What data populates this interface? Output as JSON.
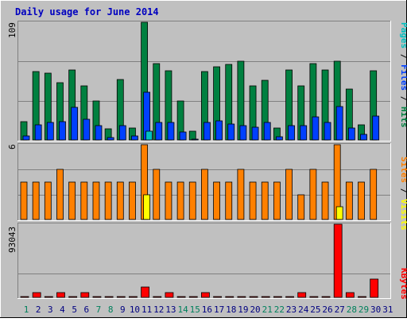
{
  "chart_data": [
    {
      "type": "bar",
      "title": "Daily usage for June 2014",
      "ymax_label": "109",
      "right_label": [
        {
          "text": "Pages",
          "color": "#00c0c0"
        },
        {
          "text": " / ",
          "color": "#000000"
        },
        {
          "text": "Files",
          "color": "#0040ff"
        },
        {
          "text": " / ",
          "color": "#000000"
        },
        {
          "text": "Hits",
          "color": "#008040"
        }
      ],
      "categories": [
        "1",
        "2",
        "3",
        "4",
        "5",
        "6",
        "7",
        "8",
        "9",
        "10",
        "11",
        "12",
        "13",
        "14",
        "15",
        "16",
        "17",
        "18",
        "19",
        "20",
        "21",
        "22",
        "23",
        "24",
        "25",
        "26",
        "27",
        "28",
        "29",
        "30",
        "31"
      ],
      "series": [
        {
          "name": "Hits",
          "color": "#008040",
          "values": [
            17,
            63,
            62,
            53,
            65,
            50,
            36,
            10,
            56,
            11,
            109,
            71,
            64,
            36,
            8,
            63,
            68,
            70,
            73,
            50,
            55,
            11,
            65,
            50,
            71,
            65,
            73,
            47,
            14,
            64,
            0
          ]
        },
        {
          "name": "Files",
          "color": "#0040ff",
          "values": [
            4,
            14,
            16,
            17,
            30,
            19,
            13,
            2,
            13,
            4,
            44,
            16,
            16,
            7,
            1,
            16,
            18,
            15,
            13,
            12,
            16,
            3,
            13,
            13,
            21,
            16,
            31,
            11,
            5,
            22,
            0
          ]
        },
        {
          "name": "Pages",
          "color": "#00c0c0",
          "values": [
            0,
            0,
            0,
            0,
            0,
            0,
            0,
            0,
            0,
            0,
            8,
            0,
            0,
            0,
            0,
            0,
            0,
            0,
            0,
            0,
            0,
            0,
            0,
            0,
            0,
            0,
            0,
            0,
            0,
            0,
            0
          ]
        }
      ],
      "ylim": [
        0,
        109
      ]
    },
    {
      "type": "bar",
      "ymax_label": "6",
      "right_label": [
        {
          "text": "Sites",
          "color": "#ff8000"
        },
        {
          "text": " / ",
          "color": "#000000"
        },
        {
          "text": "Visits",
          "color": "#ffff00"
        }
      ],
      "series": [
        {
          "name": "Sites",
          "color": "#ff8000",
          "values": [
            3,
            3,
            3,
            4,
            3,
            3,
            3,
            3,
            3,
            3,
            6,
            4,
            3,
            3,
            3,
            4,
            3,
            3,
            4,
            3,
            3,
            3,
            4,
            2,
            4,
            3,
            6,
            3,
            3,
            4,
            0
          ]
        },
        {
          "name": "Visits",
          "color": "#ffff00",
          "values": [
            0,
            0,
            0,
            0,
            0,
            0,
            0,
            0,
            0,
            0,
            2,
            0,
            0,
            0,
            0,
            0,
            0,
            0,
            0,
            0,
            0,
            0,
            0,
            0,
            0,
            0,
            1,
            0,
            0,
            0,
            0
          ]
        }
      ],
      "ylim": [
        0,
        6
      ]
    },
    {
      "type": "bar",
      "ymax_label": "93043",
      "right_label": [
        {
          "text": "KBytes",
          "color": "#ff0000"
        }
      ],
      "series": [
        {
          "name": "KBytes",
          "color": "#ff0000",
          "values": [
            1500,
            6500,
            1500,
            6000,
            1500,
            6500,
            1500,
            1500,
            1500,
            1500,
            13500,
            1500,
            6500,
            1500,
            1500,
            6500,
            1500,
            1500,
            1500,
            1500,
            1500,
            1500,
            1500,
            6500,
            1500,
            1500,
            93043,
            6500,
            1500,
            23000,
            0
          ]
        }
      ],
      "ylim": [
        0,
        93043
      ]
    }
  ],
  "xaxis": {
    "labels": [
      "1",
      "2",
      "3",
      "4",
      "5",
      "6",
      "7",
      "8",
      "9",
      "10",
      "11",
      "12",
      "13",
      "14",
      "15",
      "16",
      "17",
      "18",
      "19",
      "20",
      "21",
      "22",
      "23",
      "24",
      "25",
      "26",
      "27",
      "28",
      "29",
      "30",
      "31"
    ],
    "weekend_color": "#00805c",
    "weekday_color": "#000080",
    "weekend_days": [
      1,
      7,
      8,
      14,
      15,
      21,
      22,
      28,
      29
    ]
  },
  "colors": {
    "background": "#c0c0c0",
    "title": "#0000c0",
    "border_light": "#ffffff",
    "border_dark": "#808080"
  }
}
